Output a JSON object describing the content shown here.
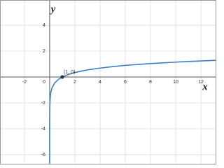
{
  "chart_data": {
    "type": "line",
    "x_label": "x",
    "y_label": "y",
    "x": [
      1.5e-06,
      1e-05,
      0.0001,
      0.001,
      0.01,
      0.05,
      0.1,
      0.2,
      0.4,
      0.7,
      1,
      1.5,
      2,
      3,
      4,
      5,
      6,
      8,
      10,
      12,
      13.2
    ],
    "series": [
      {
        "color": "#3d7fc1",
        "values": [
          -6.71,
          -5.76,
          -4.61,
          -3.45,
          -2.3,
          -1.5,
          -1.15,
          -0.8,
          -0.46,
          -0.18,
          0,
          0.2,
          0.35,
          0.55,
          0.69,
          0.8,
          0.9,
          1.04,
          1.15,
          1.24,
          1.29
        ]
      }
    ],
    "xlim": [
      -3.94,
      13.22
    ],
    "ylim": [
      -6.76,
      5.95
    ],
    "xticks": [
      -2,
      2,
      4,
      6,
      8,
      10,
      12
    ],
    "yticks": [
      -6,
      -4,
      -2,
      0,
      2,
      4
    ],
    "grid": true,
    "points": [
      {
        "x": 1,
        "y": 0,
        "label": "(1, 0)",
        "color": "#333333"
      }
    ]
  }
}
